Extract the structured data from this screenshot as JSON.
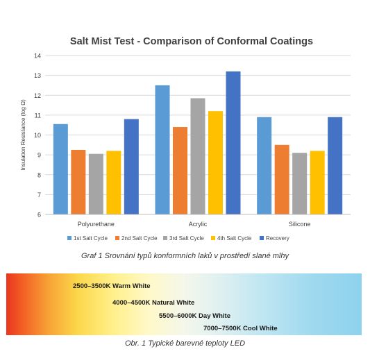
{
  "chart_data": {
    "type": "bar",
    "title": "Salt Mist Test - Comparison of Conformal Coatings",
    "ylabel": "Insulation Resistance (log Ω)",
    "xlabel": "",
    "ylim": [
      6,
      14
    ],
    "yticks": [
      6,
      7,
      8,
      9,
      10,
      11,
      12,
      13,
      14
    ],
    "grid": true,
    "legend_position": "bottom",
    "categories": [
      "Polyurethane",
      "Acrylic",
      "Silicone"
    ],
    "series": [
      {
        "name": "1st Salt Cycle",
        "color": "#5b9bd5",
        "values": [
          10.55,
          12.5,
          10.9
        ]
      },
      {
        "name": "2nd Salt Cycle",
        "color": "#ed7d31",
        "values": [
          9.25,
          10.4,
          9.5
        ]
      },
      {
        "name": "3rd Salt Cycle",
        "color": "#a5a5a5",
        "values": [
          9.05,
          11.85,
          9.1
        ]
      },
      {
        "name": "4th Salt Cycle",
        "color": "#ffc000",
        "values": [
          9.2,
          11.2,
          9.2
        ]
      },
      {
        "name": "Recovery",
        "color": "#4472c4",
        "values": [
          10.8,
          13.2,
          10.9
        ]
      }
    ]
  },
  "captions": {
    "chart": "Graf 1  Srovnání typů konformních laků v prostředí slané mlhy",
    "spectrum": "Obr. 1  Typické barevné teploty LED"
  },
  "spectrum": {
    "labels": [
      "2500–3500K Warm White",
      "4000–4500K Natural White",
      "5500–6000K Day White",
      "7000–7500K Cool White"
    ]
  }
}
